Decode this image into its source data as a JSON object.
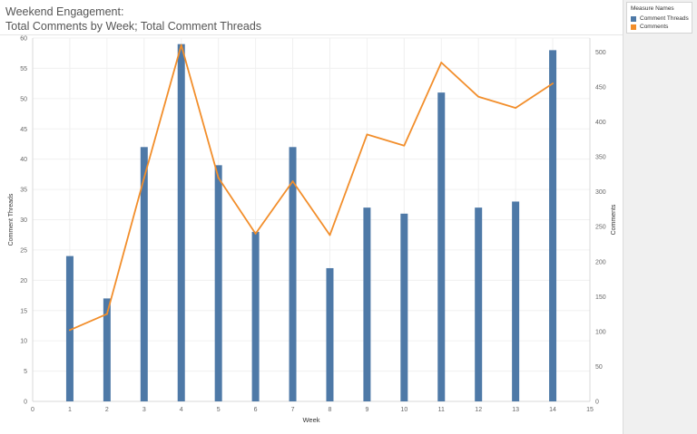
{
  "title_lines": [
    "Weekend Engagement:",
    "Total Comments by Week; Total Comment Threads"
  ],
  "legend": {
    "title": "Measure Names",
    "items": [
      {
        "label": "Comment Threads",
        "color": "#4e79a7"
      },
      {
        "label": "Comments",
        "color": "#f28e2b"
      }
    ]
  },
  "chart_data": {
    "type": "bar",
    "xlabel": "Week",
    "ylabel_left": "Comment Threads",
    "ylabel_right": "Comments",
    "x_ticks": [
      "0",
      "1",
      "2",
      "3",
      "4",
      "5",
      "6",
      "7",
      "8",
      "9",
      "10",
      "11",
      "12",
      "13",
      "14",
      "15"
    ],
    "x_domain": [
      0,
      15
    ],
    "y_left_ticks": [
      "0",
      "5",
      "10",
      "15",
      "20",
      "25",
      "30",
      "35",
      "40",
      "45",
      "50",
      "55",
      "60"
    ],
    "y_left_domain": [
      0,
      60
    ],
    "y_right_ticks": [
      "0",
      "50",
      "100",
      "150",
      "200",
      "250",
      "300",
      "350",
      "400",
      "450",
      "500"
    ],
    "y_right_domain": [
      0,
      520
    ],
    "grid": true,
    "series": [
      {
        "name": "Comment Threads",
        "type": "bar",
        "axis": "left",
        "color": "#4e79a7",
        "x": [
          1,
          2,
          3,
          4,
          5,
          6,
          7,
          8,
          9,
          10,
          11,
          12,
          13,
          14
        ],
        "values": [
          24,
          17,
          42,
          59,
          39,
          28,
          42,
          22,
          32,
          31,
          51,
          32,
          33,
          58
        ]
      },
      {
        "name": "Comments",
        "type": "line",
        "axis": "right",
        "color": "#f28e2b",
        "x": [
          1,
          2,
          3,
          4,
          5,
          6,
          7,
          8,
          9,
          10,
          11,
          12,
          13,
          14
        ],
        "values": [
          102,
          125,
          320,
          510,
          320,
          240,
          315,
          238,
          382,
          366,
          485,
          436,
          420,
          455
        ]
      }
    ]
  }
}
